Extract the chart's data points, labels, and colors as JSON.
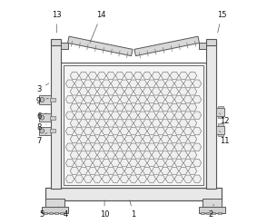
{
  "bg_color": "#ffffff",
  "line_color": "#555555",
  "figsize": [
    2.94,
    2.47
  ],
  "dpi": 100,
  "label_positions": {
    "1": [
      0.5,
      0.038,
      0.48,
      0.115
    ],
    "2": [
      0.845,
      0.038,
      0.86,
      0.085
    ],
    "3": [
      0.075,
      0.6,
      0.13,
      0.635
    ],
    "4": [
      0.195,
      0.038,
      0.165,
      0.075
    ],
    "5": [
      0.09,
      0.038,
      0.105,
      0.062
    ],
    "6": [
      0.075,
      0.48,
      0.12,
      0.5
    ],
    "7": [
      0.075,
      0.37,
      0.12,
      0.415
    ],
    "8": [
      0.075,
      0.43,
      0.12,
      0.45
    ],
    "9": [
      0.075,
      0.55,
      0.13,
      0.565
    ],
    "10": [
      0.37,
      0.038,
      0.37,
      0.115
    ],
    "11": [
      0.91,
      0.37,
      0.885,
      0.415
    ],
    "12": [
      0.91,
      0.46,
      0.885,
      0.495
    ],
    "13": [
      0.155,
      0.935,
      0.155,
      0.845
    ],
    "14": [
      0.355,
      0.935,
      0.3,
      0.8
    ],
    "15": [
      0.895,
      0.935,
      0.875,
      0.845
    ]
  }
}
